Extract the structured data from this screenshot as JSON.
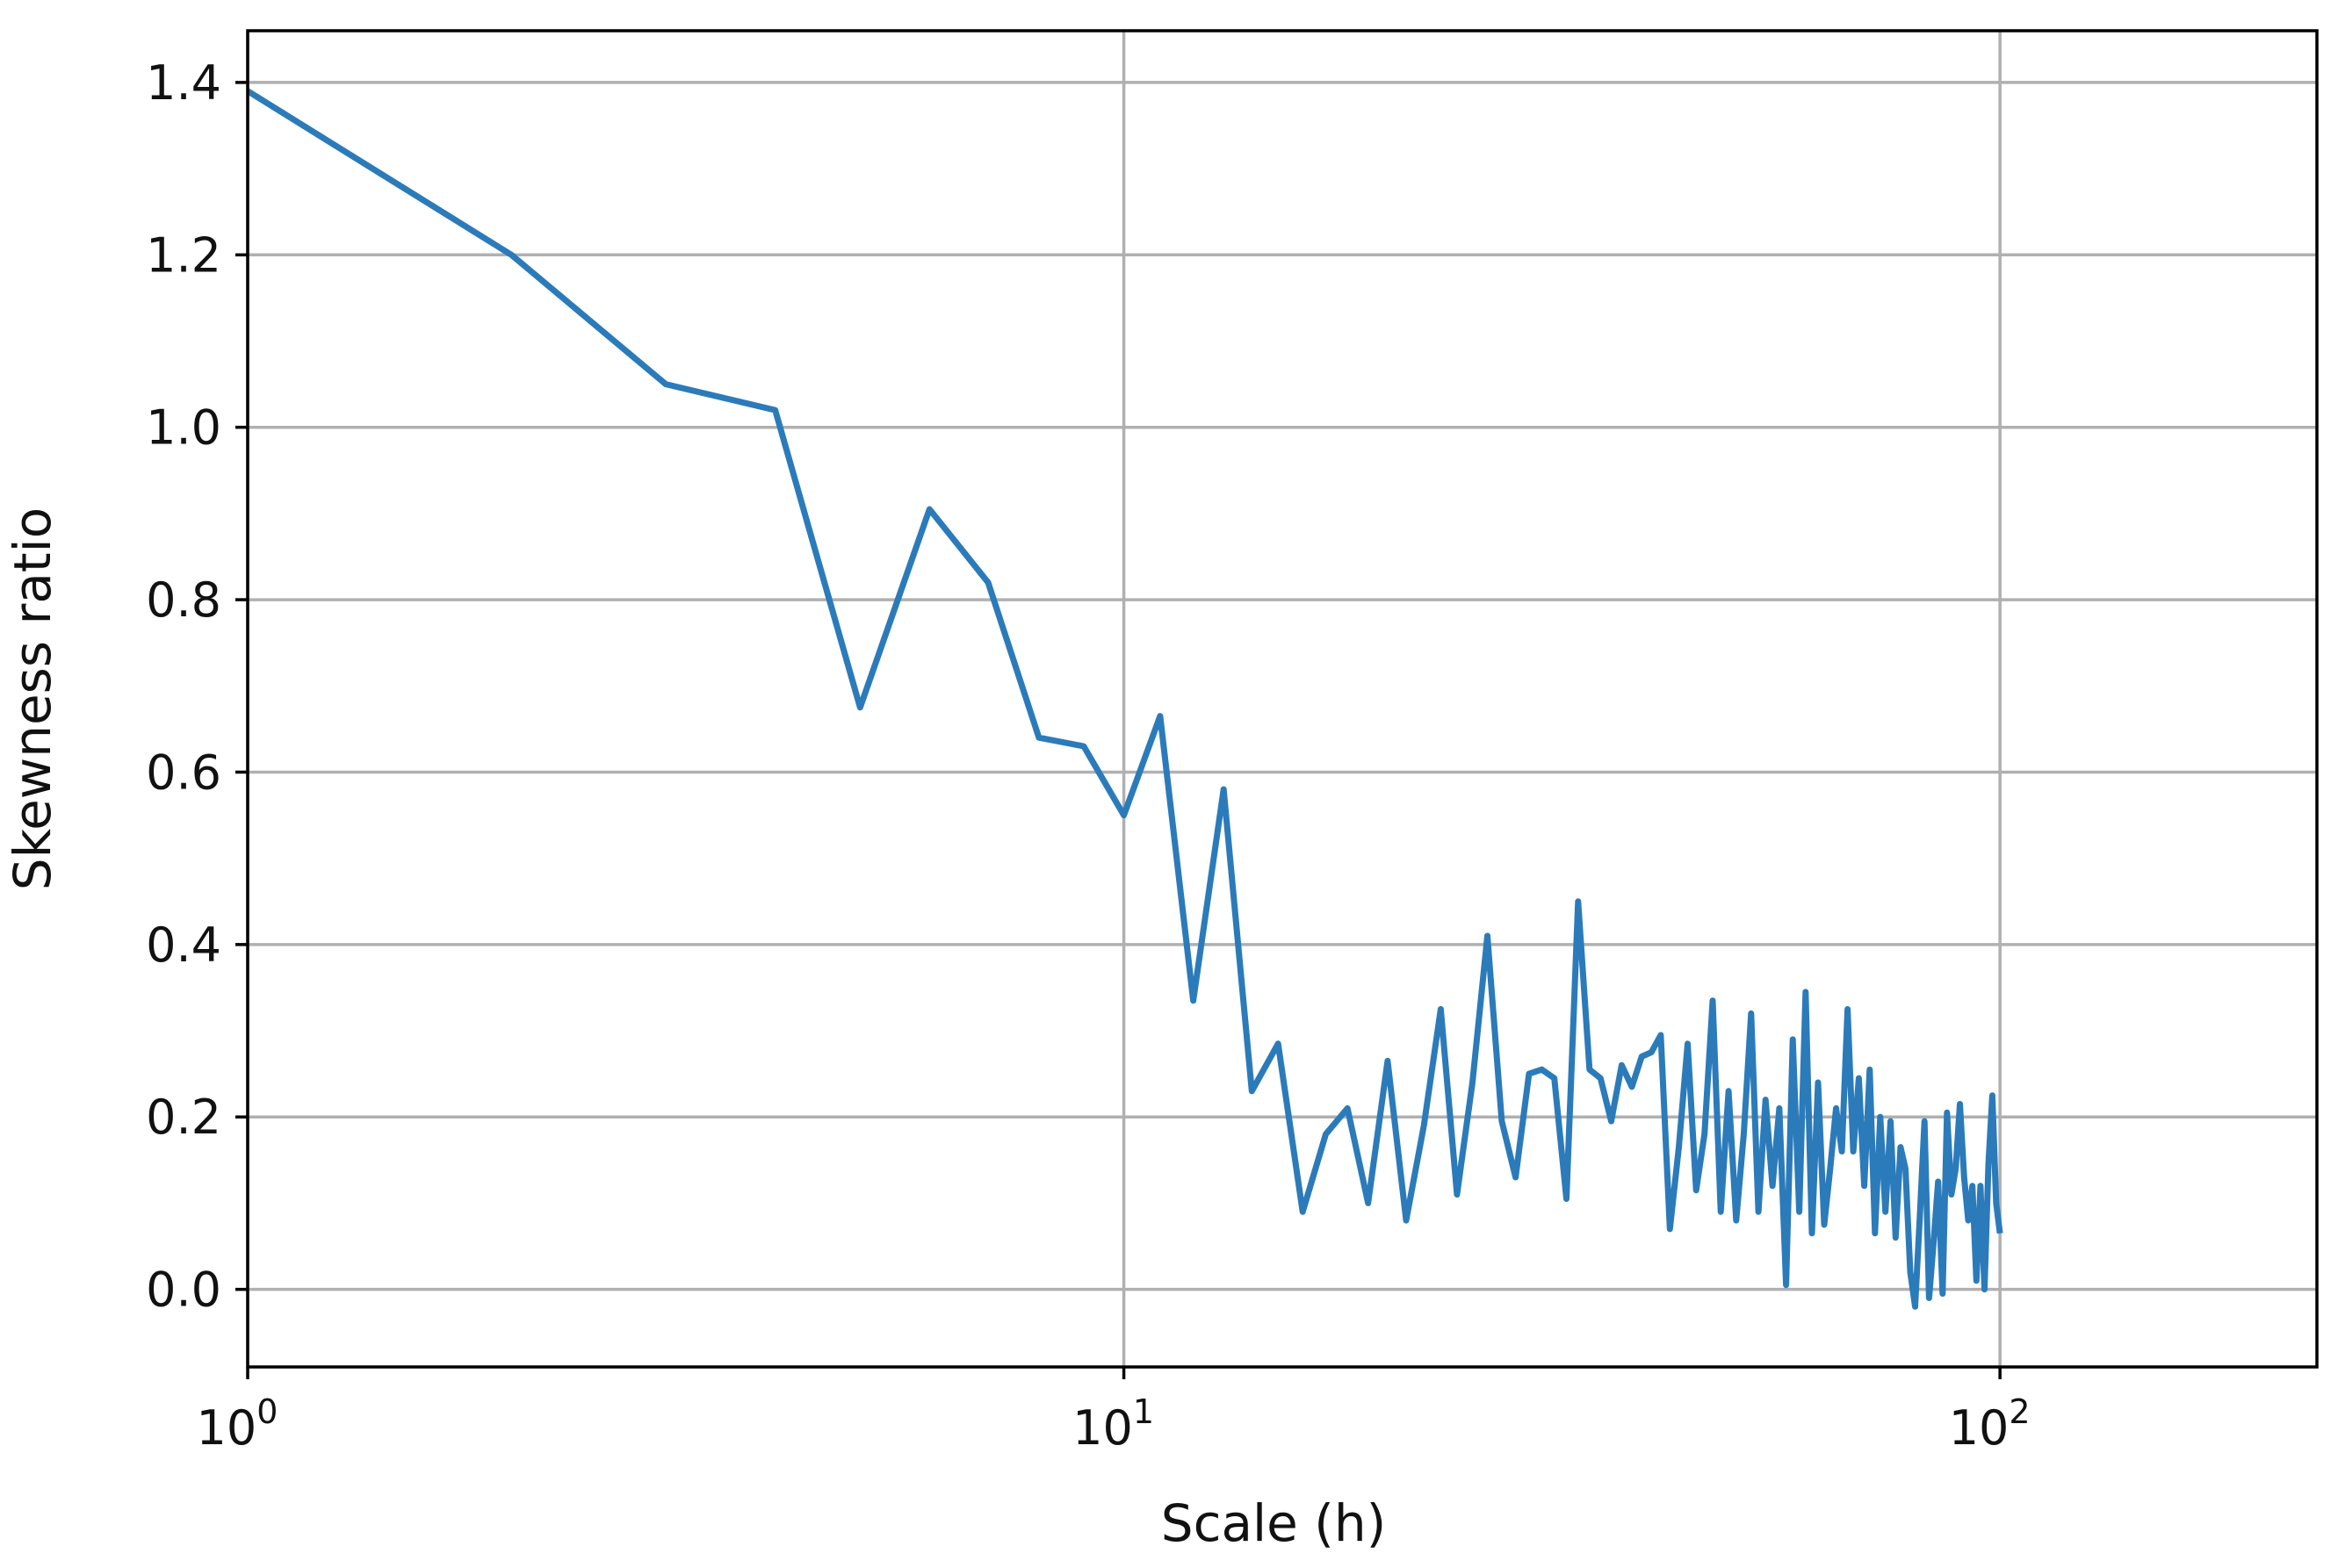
{
  "chart_data": {
    "type": "line",
    "xlabel": "Scale (h)",
    "ylabel": "Skewness ratio",
    "xscale": "log",
    "xlim": [
      1,
      230
    ],
    "ylim": [
      -0.09,
      1.46
    ],
    "grid": true,
    "xticks": [
      {
        "value": 1,
        "base": "10",
        "exp": "0"
      },
      {
        "value": 10,
        "base": "10",
        "exp": "1"
      },
      {
        "value": 100,
        "base": "10",
        "exp": "2"
      }
    ],
    "yticks": [
      {
        "value": 0.0,
        "label": "0.0"
      },
      {
        "value": 0.2,
        "label": "0.2"
      },
      {
        "value": 0.4,
        "label": "0.4"
      },
      {
        "value": 0.6,
        "label": "0.6"
      },
      {
        "value": 0.8,
        "label": "0.8"
      },
      {
        "value": 1.0,
        "label": "1.0"
      },
      {
        "value": 1.2,
        "label": "1.2"
      },
      {
        "value": 1.4,
        "label": "1.4"
      }
    ],
    "series": [
      {
        "color": "#2b7bba",
        "points": [
          [
            1,
            1.39
          ],
          [
            2,
            1.2
          ],
          [
            3,
            1.05
          ],
          [
            4,
            1.02
          ],
          [
            5,
            0.675
          ],
          [
            6,
            0.905
          ],
          [
            7,
            0.82
          ],
          [
            8,
            0.64
          ],
          [
            9,
            0.63
          ],
          [
            10,
            0.55
          ],
          [
            11,
            0.665
          ],
          [
            12,
            0.335
          ],
          [
            13,
            0.58
          ],
          [
            14,
            0.23
          ],
          [
            15,
            0.285
          ],
          [
            16,
            0.09
          ],
          [
            17,
            0.18
          ],
          [
            18,
            0.21
          ],
          [
            19,
            0.1
          ],
          [
            20,
            0.265
          ],
          [
            21,
            0.08
          ],
          [
            22,
            0.19
          ],
          [
            23,
            0.325
          ],
          [
            24,
            0.11
          ],
          [
            25,
            0.24
          ],
          [
            26,
            0.41
          ],
          [
            27,
            0.195
          ],
          [
            28,
            0.13
          ],
          [
            29,
            0.25
          ],
          [
            30,
            0.255
          ],
          [
            31,
            0.245
          ],
          [
            32,
            0.105
          ],
          [
            33,
            0.45
          ],
          [
            34,
            0.255
          ],
          [
            35,
            0.245
          ],
          [
            36,
            0.195
          ],
          [
            37,
            0.26
          ],
          [
            38,
            0.235
          ],
          [
            39,
            0.27
          ],
          [
            40,
            0.275
          ],
          [
            41,
            0.295
          ],
          [
            42,
            0.07
          ],
          [
            43,
            0.165
          ],
          [
            44,
            0.285
          ],
          [
            45,
            0.115
          ],
          [
            46,
            0.18
          ],
          [
            47,
            0.335
          ],
          [
            48,
            0.09
          ],
          [
            49,
            0.23
          ],
          [
            50,
            0.08
          ],
          [
            51,
            0.18
          ],
          [
            52,
            0.32
          ],
          [
            53,
            0.09
          ],
          [
            54,
            0.22
          ],
          [
            55,
            0.12
          ],
          [
            56,
            0.21
          ],
          [
            57,
            0.005
          ],
          [
            58,
            0.29
          ],
          [
            59,
            0.09
          ],
          [
            60,
            0.345
          ],
          [
            61,
            0.065
          ],
          [
            62,
            0.24
          ],
          [
            63,
            0.075
          ],
          [
            64,
            0.14
          ],
          [
            65,
            0.21
          ],
          [
            66,
            0.16
          ],
          [
            67,
            0.325
          ],
          [
            68,
            0.16
          ],
          [
            69,
            0.245
          ],
          [
            70,
            0.12
          ],
          [
            71,
            0.255
          ],
          [
            72,
            0.065
          ],
          [
            73,
            0.2
          ],
          [
            74,
            0.09
          ],
          [
            75,
            0.195
          ],
          [
            76,
            0.06
          ],
          [
            77,
            0.165
          ],
          [
            78,
            0.14
          ],
          [
            79,
            0.02
          ],
          [
            80,
            -0.02
          ],
          [
            81,
            0.085
          ],
          [
            82,
            0.195
          ],
          [
            83,
            -0.01
          ],
          [
            84,
            0.055
          ],
          [
            85,
            0.125
          ],
          [
            86,
            -0.005
          ],
          [
            87,
            0.205
          ],
          [
            88,
            0.11
          ],
          [
            89,
            0.14
          ],
          [
            90,
            0.215
          ],
          [
            91,
            0.13
          ],
          [
            92,
            0.08
          ],
          [
            93,
            0.12
          ],
          [
            94,
            0.01
          ],
          [
            95,
            0.12
          ],
          [
            96,
            0.0
          ],
          [
            97,
            0.145
          ],
          [
            98,
            0.225
          ],
          [
            99,
            0.1
          ],
          [
            100,
            0.065
          ]
        ]
      }
    ]
  }
}
